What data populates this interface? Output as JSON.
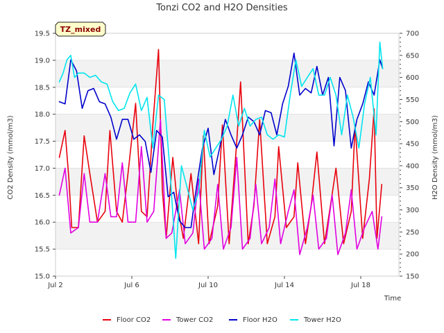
{
  "chart_data": {
    "type": "line",
    "title": "Tonzi CO2 and H2O Densities",
    "badge": "TZ_mixed",
    "xlabel": "Time",
    "ylabel_left": "CO2 Density (mmol/m3)",
    "ylabel_right": "H2O Density (mmol/m3)",
    "xlim": [
      2.0,
      20.0
    ],
    "ylim_left": [
      15.0,
      19.5
    ],
    "ylim_right": [
      150,
      700
    ],
    "x_ticks": [
      {
        "value": 2.0,
        "label": "Jul 2"
      },
      {
        "value": 6.0,
        "label": "Jul 6"
      },
      {
        "value": 10.0,
        "label": "Jul 10"
      },
      {
        "value": 14.0,
        "label": "Jul 14"
      },
      {
        "value": 18.0,
        "label": "Jul 18"
      }
    ],
    "y_left_ticks": [
      "15.0",
      "15.5",
      "16.0",
      "16.5",
      "17.0",
      "17.5",
      "18.0",
      "18.5",
      "19.0",
      "19.5"
    ],
    "y_right_ticks": [
      "150",
      "200",
      "250",
      "300",
      "350",
      "400",
      "450",
      "500",
      "550",
      "600",
      "650",
      "700"
    ],
    "grid": true,
    "legend_position": "bottom",
    "series": [
      {
        "name": "Floor CO2",
        "axis": "left",
        "color": "#e8000b",
        "x": [
          2.2,
          2.5,
          2.7,
          2.85,
          3.2,
          3.5,
          3.8,
          4.2,
          4.6,
          4.85,
          5.2,
          5.5,
          5.8,
          6.2,
          6.5,
          6.8,
          7.1,
          7.4,
          7.6,
          7.8,
          8.15,
          8.4,
          8.7,
          9.1,
          9.5,
          9.75,
          10.05,
          10.5,
          10.75,
          11.1,
          11.5,
          11.7,
          12.1,
          12.4,
          12.7,
          13.1,
          13.5,
          13.7,
          14.1,
          14.5,
          14.7,
          15.1,
          15.4,
          15.7,
          16.1,
          16.45,
          16.7,
          17.1,
          17.5,
          17.7,
          18.1,
          18.45,
          18.7,
          18.85,
          19.1
        ],
        "values": [
          17.2,
          17.7,
          16.8,
          15.9,
          15.9,
          17.6,
          16.9,
          16.0,
          16.2,
          17.7,
          16.2,
          16.0,
          16.9,
          18.2,
          16.2,
          16.1,
          17.8,
          19.2,
          16.6,
          15.7,
          17.2,
          16.3,
          15.7,
          16.9,
          15.6,
          17.6,
          15.6,
          16.3,
          17.8,
          15.6,
          17.5,
          18.6,
          15.6,
          16.3,
          17.9,
          15.6,
          16.1,
          17.4,
          15.9,
          16.1,
          17.1,
          15.6,
          16.3,
          17.3,
          15.6,
          16.4,
          17.0,
          15.6,
          16.2,
          17.8,
          15.7,
          16.8,
          18.1,
          15.7,
          16.7
        ]
      },
      {
        "name": "Tower CO2",
        "axis": "left",
        "color": "#e100e1",
        "x": [
          2.2,
          2.5,
          2.8,
          3.2,
          3.5,
          3.8,
          4.2,
          4.6,
          4.9,
          5.2,
          5.5,
          5.8,
          6.2,
          6.5,
          6.8,
          7.15,
          7.5,
          7.8,
          8.1,
          8.5,
          8.8,
          9.2,
          9.5,
          9.8,
          10.2,
          10.5,
          10.8,
          11.2,
          11.5,
          11.8,
          12.2,
          12.5,
          12.8,
          13.2,
          13.5,
          13.8,
          14.2,
          14.5,
          14.8,
          15.2,
          15.5,
          15.8,
          16.2,
          16.5,
          16.8,
          17.2,
          17.5,
          17.8,
          18.2,
          18.6,
          18.9,
          19.1
        ],
        "values": [
          16.5,
          17.0,
          15.8,
          15.9,
          16.9,
          16.0,
          16.0,
          16.9,
          16.1,
          16.1,
          17.1,
          16.0,
          16.0,
          17.4,
          16.0,
          16.2,
          17.9,
          15.7,
          15.8,
          16.6,
          15.6,
          15.8,
          16.8,
          15.5,
          15.7,
          16.7,
          15.5,
          15.9,
          17.2,
          15.5,
          15.7,
          16.7,
          15.6,
          15.9,
          16.8,
          15.6,
          16.2,
          16.6,
          15.4,
          15.9,
          16.5,
          15.5,
          15.7,
          16.5,
          15.4,
          15.8,
          16.6,
          15.5,
          15.9,
          16.2,
          15.5,
          16.1
        ]
      },
      {
        "name": "Floor H2O",
        "axis": "right",
        "color": "#0000cc",
        "x": [
          2.2,
          2.5,
          2.8,
          3.1,
          3.4,
          3.7,
          4.0,
          4.3,
          4.6,
          4.9,
          5.2,
          5.5,
          5.8,
          6.1,
          6.4,
          6.7,
          7.0,
          7.3,
          7.6,
          7.9,
          8.2,
          8.5,
          8.8,
          9.1,
          9.4,
          9.7,
          10.0,
          10.3,
          10.6,
          10.9,
          11.2,
          11.5,
          11.8,
          12.1,
          12.4,
          12.7,
          13.0,
          13.3,
          13.6,
          13.9,
          14.2,
          14.5,
          14.8,
          15.1,
          15.4,
          15.7,
          16.0,
          16.3,
          16.6,
          16.9,
          17.2,
          17.5,
          17.8,
          18.1,
          18.4,
          18.7,
          19.0,
          19.15
        ],
        "values": [
          545,
          540,
          640,
          615,
          530,
          570,
          575,
          545,
          540,
          510,
          460,
          505,
          505,
          460,
          470,
          455,
          385,
          480,
          465,
          330,
          340,
          275,
          260,
          260,
          355,
          440,
          485,
          380,
          440,
          505,
          470,
          440,
          470,
          510,
          500,
          470,
          525,
          520,
          470,
          540,
          580,
          655,
          560,
          575,
          565,
          625,
          560,
          600,
          445,
          600,
          570,
          440,
          505,
          540,
          590,
          560,
          640,
          620
        ]
      },
      {
        "name": "Tower H2O",
        "axis": "right",
        "color": "#00e5ee",
        "x": [
          2.2,
          2.4,
          2.6,
          2.8,
          3.0,
          3.2,
          3.5,
          3.8,
          4.1,
          4.4,
          4.7,
          5.0,
          5.3,
          5.6,
          5.9,
          6.2,
          6.5,
          6.8,
          7.1,
          7.4,
          7.7,
          8.0,
          8.3,
          8.6,
          8.9,
          9.2,
          9.5,
          9.8,
          10.1,
          10.4,
          10.7,
          11.0,
          11.3,
          11.6,
          11.9,
          12.2,
          12.5,
          12.8,
          13.1,
          13.4,
          13.7,
          14.0,
          14.3,
          14.6,
          14.9,
          15.2,
          15.5,
          15.8,
          16.1,
          16.4,
          16.7,
          17.0,
          17.3,
          17.6,
          17.9,
          18.2,
          18.5,
          18.8,
          19.0,
          19.15
        ],
        "values": [
          590,
          610,
          640,
          650,
          600,
          610,
          610,
          600,
          605,
          590,
          585,
          545,
          525,
          530,
          565,
          585,
          525,
          555,
          440,
          560,
          550,
          390,
          190,
          400,
          350,
          300,
          340,
          480,
          420,
          440,
          460,
          490,
          560,
          490,
          530,
          490,
          505,
          510,
          470,
          460,
          470,
          465,
          560,
          640,
          580,
          600,
          620,
          560,
          560,
          600,
          560,
          470,
          560,
          510,
          440,
          540,
          600,
          470,
          680,
          620
        ]
      }
    ]
  }
}
